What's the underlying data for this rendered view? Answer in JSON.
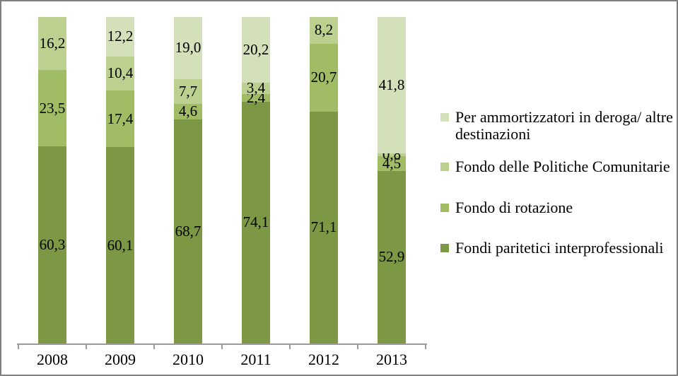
{
  "chart_data": {
    "type": "bar",
    "stacked": true,
    "orientation": "vertical",
    "title": "",
    "xlabel": "",
    "ylabel": "",
    "ylim": [
      0,
      100
    ],
    "gridlines": false,
    "legend_position": "right",
    "value_label_format": "comma-decimal-1, hidden when value is 0",
    "categories": [
      "2008",
      "2009",
      "2010",
      "2011",
      "2012",
      "2013"
    ],
    "series": [
      {
        "name": "Fondi paritetici interprofessionali",
        "color": "#7d9845",
        "values": [
          60.3,
          60.1,
          68.7,
          74.1,
          71.1,
          52.9
        ]
      },
      {
        "name": "Fondo di rotazione",
        "color": "#a0bc64",
        "values": [
          23.5,
          17.4,
          4.6,
          2.4,
          20.7,
          4.5
        ]
      },
      {
        "name": "Fondo delle Politiche Comunitarie",
        "color": "#bcd18f",
        "values": [
          16.2,
          10.4,
          7.7,
          3.4,
          8.2,
          0.8
        ]
      },
      {
        "name": "Per ammortizzatori in deroga/ altre destinazioni",
        "color": "#d3e0ba",
        "values": [
          0,
          12.2,
          19.0,
          20.2,
          0,
          41.8
        ]
      }
    ],
    "value_labels_display": [
      [
        "60,3",
        "60,1",
        "68,7",
        "74,1",
        "71,1",
        "52,9"
      ],
      [
        "23,5",
        "17,4",
        "4,6",
        "2,4",
        "20,7",
        "4,5"
      ],
      [
        "16,2",
        "10,4",
        "7,7",
        "3,4",
        "8,2",
        "0,8"
      ],
      [
        "",
        "12,2",
        "19,0",
        "20,2",
        "",
        "41,8"
      ]
    ],
    "legend": [
      {
        "label": "Per ammortizzatori in deroga/ altre destinazioni",
        "series_index": 3
      },
      {
        "label": "Fondo delle Politiche Comunitarie",
        "series_index": 2
      },
      {
        "label": "Fondo di rotazione",
        "series_index": 1
      },
      {
        "label": "Fondi paritetici interprofessionali",
        "series_index": 0
      }
    ],
    "axis_color": "#9b9b9b",
    "label_color": "#000000"
  }
}
